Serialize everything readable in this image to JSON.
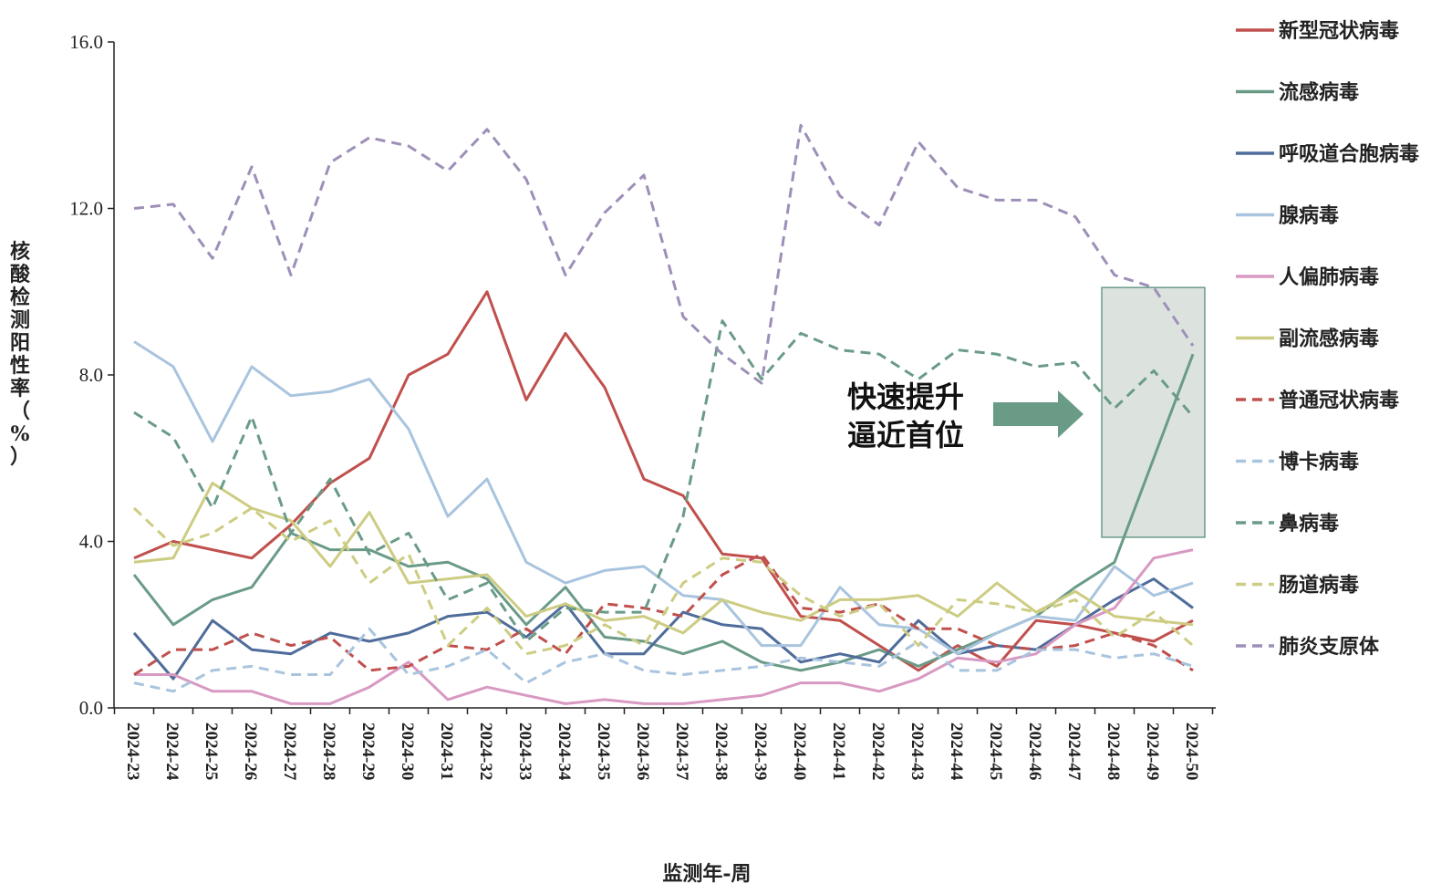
{
  "chart_data": {
    "type": "line",
    "xlabel": "监测年-周",
    "ylabel_chars": [
      "核",
      "酸",
      "检",
      "测",
      "阳",
      "性",
      "率",
      "（",
      "%",
      "）"
    ],
    "ylim": [
      0,
      16
    ],
    "yticks": [
      "0.0",
      "4.0",
      "8.0",
      "12.0",
      "16.0"
    ],
    "categories": [
      "2024-23",
      "2024-24",
      "2024-25",
      "2024-26",
      "2024-27",
      "2024-28",
      "2024-29",
      "2024-30",
      "2024-31",
      "2024-32",
      "2024-33",
      "2024-34",
      "2024-35",
      "2024-36",
      "2024-37",
      "2024-38",
      "2024-39",
      "2024-40",
      "2024-41",
      "2024-42",
      "2024-43",
      "2024-44",
      "2024-45",
      "2024-46",
      "2024-47",
      "2024-48",
      "2024-49",
      "2024-50"
    ],
    "legend_position": "right",
    "series": [
      {
        "name": "新型冠状病毒",
        "color": "#C0504D",
        "dash": false,
        "values": [
          3.6,
          4.0,
          3.8,
          3.6,
          4.4,
          5.4,
          6.0,
          8.0,
          8.5,
          10.0,
          7.4,
          9.0,
          7.7,
          5.5,
          5.1,
          3.7,
          3.6,
          2.2,
          2.1,
          1.5,
          0.9,
          1.5,
          1.0,
          2.1,
          2.0,
          1.8,
          1.6,
          2.1
        ]
      },
      {
        "name": "流感病毒",
        "color": "#6A9B87",
        "dash": false,
        "values": [
          3.2,
          2.0,
          2.6,
          2.9,
          4.2,
          3.8,
          3.8,
          3.4,
          3.5,
          3.1,
          2.0,
          2.9,
          1.7,
          1.6,
          1.3,
          1.6,
          1.1,
          0.9,
          1.1,
          1.4,
          1.0,
          1.4,
          1.8,
          2.2,
          2.9,
          3.5,
          6.0,
          8.5
        ]
      },
      {
        "name": "呼吸道合胞病毒",
        "color": "#4F6C9A",
        "dash": false,
        "values": [
          1.8,
          0.7,
          2.1,
          1.4,
          1.3,
          1.8,
          1.6,
          1.8,
          2.2,
          2.3,
          1.7,
          2.5,
          1.3,
          1.3,
          2.3,
          2.0,
          1.9,
          1.1,
          1.3,
          1.1,
          2.1,
          1.3,
          1.5,
          1.4,
          2.0,
          2.6,
          3.1,
          2.4
        ]
      },
      {
        "name": "腺病毒",
        "color": "#A9C4DE",
        "dash": false,
        "values": [
          8.8,
          8.2,
          6.4,
          8.2,
          7.5,
          7.6,
          7.9,
          6.7,
          4.6,
          5.5,
          3.5,
          3.0,
          3.3,
          3.4,
          2.7,
          2.6,
          1.5,
          1.5,
          2.9,
          2.0,
          1.9,
          1.3,
          1.8,
          2.2,
          2.1,
          3.4,
          2.7,
          3.0
        ]
      },
      {
        "name": "人偏肺病毒",
        "color": "#D899C2",
        "dash": false,
        "values": [
          0.8,
          0.8,
          0.4,
          0.4,
          0.1,
          0.1,
          0.5,
          1.1,
          0.2,
          0.5,
          0.3,
          0.1,
          0.2,
          0.1,
          0.1,
          0.2,
          0.3,
          0.6,
          0.6,
          0.4,
          0.7,
          1.2,
          1.1,
          1.3,
          2.0,
          2.4,
          3.6,
          3.8
        ]
      },
      {
        "name": "副流感病毒",
        "color": "#CDCC83",
        "dash": false,
        "values": [
          3.5,
          3.6,
          5.4,
          4.8,
          4.5,
          3.4,
          4.7,
          3.0,
          3.1,
          3.2,
          2.2,
          2.5,
          2.1,
          2.2,
          1.8,
          2.6,
          2.3,
          2.1,
          2.6,
          2.6,
          2.7,
          2.2,
          3.0,
          2.3,
          2.8,
          2.2,
          2.1,
          2.0
        ]
      },
      {
        "name": "普通冠状病毒",
        "color": "#C0504D",
        "dash": true,
        "values": [
          0.8,
          1.4,
          1.4,
          1.8,
          1.5,
          1.7,
          0.9,
          1.0,
          1.5,
          1.4,
          1.9,
          1.3,
          2.5,
          2.4,
          2.2,
          3.2,
          3.7,
          2.4,
          2.3,
          2.5,
          1.9,
          1.9,
          1.5,
          1.4,
          1.5,
          1.8,
          1.5,
          0.9
        ]
      },
      {
        "name": "博卡病毒",
        "color": "#A9C4DE",
        "dash": true,
        "values": [
          0.6,
          0.4,
          0.9,
          1.0,
          0.8,
          0.8,
          1.9,
          0.8,
          1.0,
          1.4,
          0.6,
          1.1,
          1.3,
          0.9,
          0.8,
          0.9,
          1.0,
          1.2,
          1.1,
          1.0,
          1.6,
          0.9,
          0.9,
          1.4,
          1.4,
          1.2,
          1.3,
          1.0
        ]
      },
      {
        "name": "鼻病毒",
        "color": "#6A9B87",
        "dash": true,
        "values": [
          7.1,
          6.5,
          4.8,
          7.0,
          4.2,
          5.5,
          3.7,
          4.2,
          2.6,
          3.0,
          1.6,
          2.4,
          2.3,
          2.3,
          4.6,
          9.3,
          7.9,
          9.0,
          8.6,
          8.5,
          7.9,
          8.6,
          8.5,
          8.2,
          8.3,
          7.2,
          8.1,
          7.0
        ]
      },
      {
        "name": "肠道病毒",
        "color": "#CDCC83",
        "dash": true,
        "values": [
          4.8,
          3.9,
          4.2,
          4.8,
          4.0,
          4.5,
          3.0,
          3.7,
          1.5,
          2.4,
          1.3,
          1.5,
          2.0,
          1.5,
          3.0,
          3.6,
          3.5,
          2.7,
          2.2,
          2.5,
          1.5,
          2.6,
          2.5,
          2.3,
          2.6,
          1.7,
          2.3,
          1.5
        ]
      },
      {
        "name": "肺炎支原体",
        "color": "#9E8FB9",
        "dash": true,
        "values": [
          12.0,
          12.1,
          10.8,
          13.0,
          10.4,
          13.1,
          13.7,
          13.5,
          12.9,
          13.9,
          12.7,
          10.4,
          11.9,
          12.8,
          9.4,
          8.5,
          7.8,
          14.0,
          12.3,
          11.6,
          13.6,
          12.5,
          12.2,
          12.2,
          11.8,
          10.4,
          10.1,
          8.7
        ]
      }
    ],
    "annotation": {
      "lines": [
        "快速提升",
        "逼近首位"
      ],
      "arrow_color": "#6A9B87",
      "box_fill": "#DCE3DF",
      "box_stroke": "#6A9B87",
      "box_range": {
        "x_from": "2024-48",
        "x_to": "2024-50",
        "y_from": 4.1,
        "y_to": 10.1
      }
    }
  }
}
